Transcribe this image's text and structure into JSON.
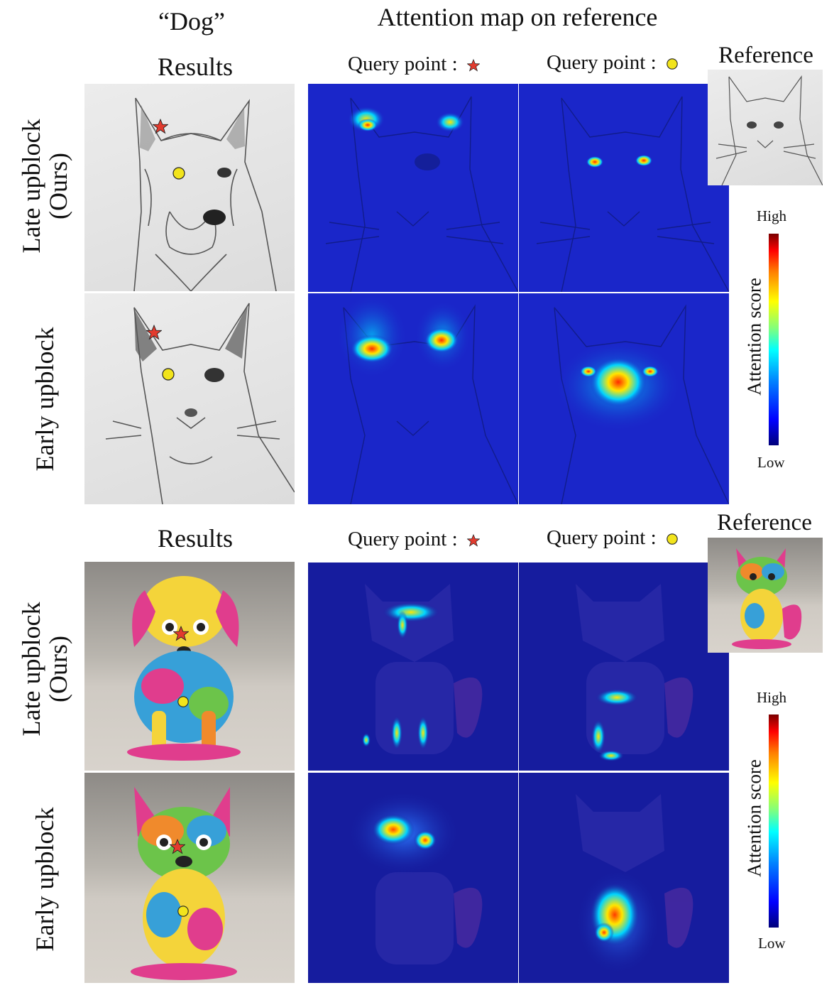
{
  "figure": {
    "prompt_label": "“Dog”",
    "attention_header": "Attention map on reference",
    "sections": [
      {
        "results_label": "Results",
        "query_star_label": "Query point :",
        "query_circle_label": "Query point :",
        "reference_label": "Reference",
        "row_late_label_line1": "Late upblock",
        "row_late_label_line2": "(Ours)",
        "row_early_label": "Early upblock",
        "colorbar": {
          "high": "High",
          "low": "Low",
          "title": "Attention score"
        }
      },
      {
        "results_label": "Results",
        "query_star_label": "Query point :",
        "query_circle_label": "Query point :",
        "reference_label": "Reference",
        "row_late_label_line1": "Late upblock",
        "row_late_label_line2": "(Ours)",
        "row_early_label": "Early upblock",
        "colorbar": {
          "high": "High",
          "low": "Low",
          "title": "Attention score"
        }
      }
    ],
    "colors": {
      "star": "#e23b2e",
      "circle": "#f2e41c",
      "heat_low": "#1a26c9",
      "heat_high": "#cc0000"
    },
    "icons": [
      "star-marker-icon",
      "circle-marker-icon"
    ]
  }
}
